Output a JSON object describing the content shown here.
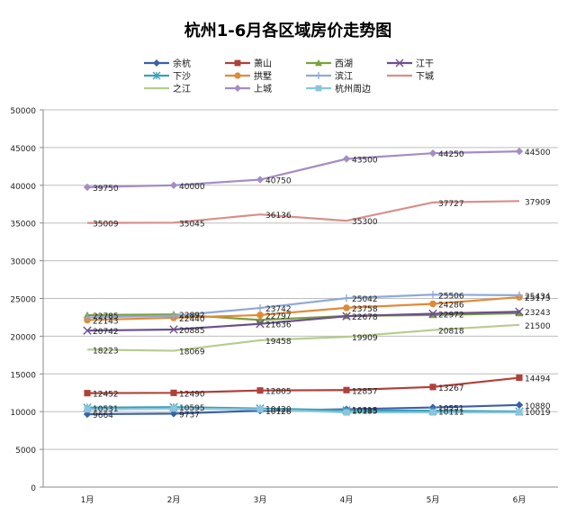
{
  "chart_data": {
    "type": "line",
    "title": "杭州1-6月各区域房价走势图",
    "categories": [
      "1月",
      "2月",
      "3月",
      "4月",
      "5月",
      "6月"
    ],
    "ylim": [
      0,
      50000
    ],
    "yticks": [
      0,
      5000,
      10000,
      15000,
      20000,
      25000,
      30000,
      35000,
      40000,
      45000,
      50000
    ],
    "grid": true,
    "legend_position": "top",
    "series": [
      {
        "name": "余杭",
        "color": "#3c5fa8",
        "marker": "diamond",
        "values": [
          9664,
          9737,
          10126,
          10313,
          10551,
          10880
        ]
      },
      {
        "name": "萧山",
        "color": "#b0403a",
        "marker": "square",
        "values": [
          12452,
          12490,
          12805,
          12857,
          13267,
          14494
        ]
      },
      {
        "name": "西湖",
        "color": "#7aa03e",
        "marker": "triangle",
        "values": [
          22785,
          22892,
          22150,
          22678,
          22800,
          23050
        ]
      },
      {
        "name": "江干",
        "color": "#6b4f8c",
        "marker": "x",
        "values": [
          20742,
          20885,
          21636,
          22650,
          22972,
          23243
        ]
      },
      {
        "name": "下沙",
        "color": "#3aa0b8",
        "marker": "asterisk",
        "values": [
          10531,
          10595,
          10420,
          10185,
          10111,
          10019
        ]
      },
      {
        "name": "拱墅",
        "color": "#e08a36",
        "marker": "circle",
        "values": [
          22143,
          22440,
          22797,
          23758,
          24286,
          25173
        ]
      },
      {
        "name": "滨江",
        "color": "#8fa9d8",
        "marker": "plus",
        "values": [
          22500,
          22700,
          23742,
          25042,
          25506,
          25434
        ]
      },
      {
        "name": "下城",
        "color": "#d88e8a",
        "marker": "none",
        "values": [
          35009,
          35045,
          36136,
          35300,
          37727,
          37909
        ]
      },
      {
        "name": "之江",
        "color": "#b5cc8e",
        "marker": "none",
        "values": [
          18223,
          18069,
          19458,
          19909,
          20818,
          21500
        ]
      },
      {
        "name": "上城",
        "color": "#a48cc4",
        "marker": "diamond",
        "values": [
          39750,
          40000,
          40750,
          43500,
          44250,
          44500
        ]
      },
      {
        "name": "杭州周边",
        "color": "#8cc4dc",
        "marker": "square",
        "values": [
          10300,
          10400,
          10300,
          9900,
          9900,
          9900
        ]
      }
    ],
    "data_labels": [
      {
        "series": "余杭",
        "labels": [
          "9664",
          "9737",
          "10126",
          "10313",
          "10551",
          "10880"
        ]
      },
      {
        "series": "萧山",
        "labels": [
          "12452",
          "12490",
          "12805",
          "12857",
          "13267",
          "14494"
        ]
      },
      {
        "series": "西湖",
        "labels": [
          "22785",
          "22892",
          "",
          "22678",
          "",
          ""
        ]
      },
      {
        "series": "江干",
        "labels": [
          "20742",
          "20885",
          "21636",
          "",
          "22972",
          "23243"
        ]
      },
      {
        "series": "下沙",
        "labels": [
          "10531",
          "10595",
          "10420",
          "10185",
          "10111",
          "10019"
        ]
      },
      {
        "series": "拱墅",
        "labels": [
          "22143",
          "22440",
          "22797",
          "23758",
          "24286",
          "25173"
        ]
      },
      {
        "series": "滨江",
        "labels": [
          "",
          "",
          "23742",
          "25042",
          "25506",
          "25434"
        ]
      },
      {
        "series": "下城",
        "labels": [
          "35009",
          "35045",
          "36136",
          "35300",
          "37727",
          "37909"
        ]
      },
      {
        "series": "之江",
        "labels": [
          "18223",
          "18069",
          "19458",
          "19909",
          "20818",
          "21500"
        ]
      },
      {
        "series": "上城",
        "labels": [
          "39750",
          "40000",
          "40750",
          "43500",
          "44250",
          "44500"
        ]
      },
      {
        "series": "杭州周边",
        "labels": [
          "",
          "",
          "",
          "",
          "",
          ""
        ]
      }
    ]
  }
}
